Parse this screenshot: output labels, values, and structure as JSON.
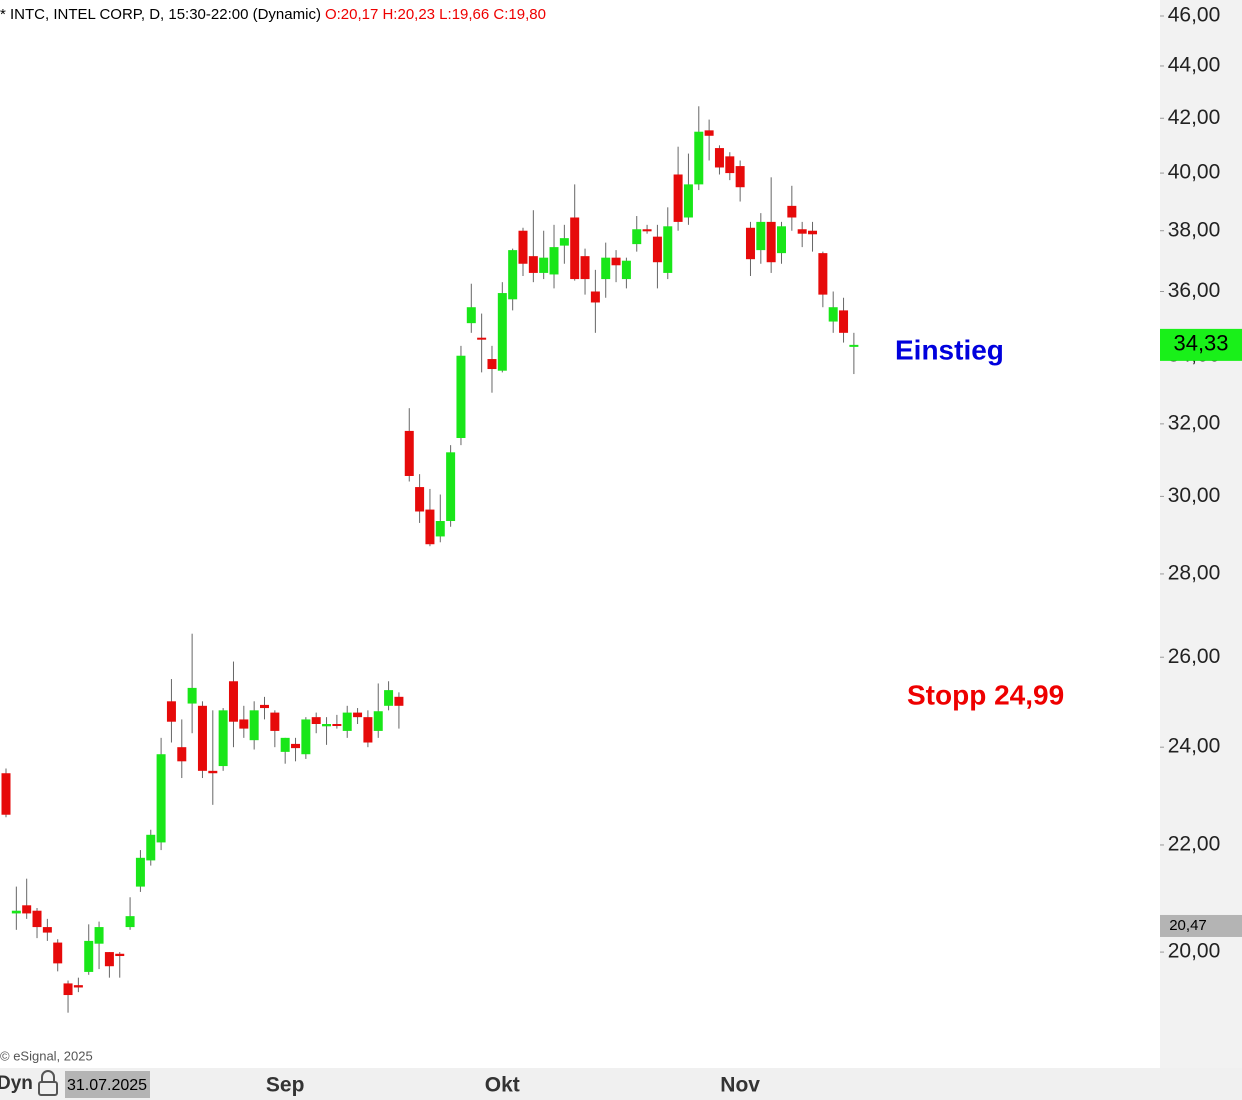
{
  "chart_data": {
    "type": "candlestick",
    "title": "* INTC, INTEL CORP, D, 15:30-22:00 (Dynamic)",
    "subtitle": "O:20,17 H:20,23 L:19,66 C:19,80",
    "categories": [
      null,
      null,
      null,
      null,
      null,
      null,
      null,
      null,
      null,
      null,
      null,
      null,
      null,
      null,
      null,
      null,
      null,
      null,
      null,
      null,
      null,
      null,
      null,
      null,
      null,
      null,
      null,
      "Sep",
      null,
      null,
      null,
      null,
      null,
      null,
      null,
      null,
      null,
      null,
      null,
      null,
      null,
      null,
      null,
      null,
      null,
      null,
      null,
      null,
      "Okt",
      null,
      null,
      null,
      null,
      null,
      null,
      null,
      null,
      null,
      null,
      null,
      null,
      null,
      null,
      null,
      null,
      null,
      null,
      null,
      null,
      null,
      null,
      "Nov",
      null,
      null,
      null,
      null,
      null,
      null,
      null,
      null,
      null,
      null,
      null
    ],
    "open": [
      23.45,
      20.7,
      20.85,
      20.75,
      20.45,
      20.17,
      19.45,
      19.42,
      19.65,
      20.15,
      20.0,
      19.97,
      20.45,
      21.2,
      21.7,
      22.05,
      25.0,
      24.0,
      24.95,
      24.9,
      23.5,
      23.6,
      25.45,
      24.6,
      24.15,
      24.92,
      24.75,
      23.9,
      24.07,
      23.85,
      24.65,
      24.45,
      24.5,
      24.35,
      24.75,
      24.65,
      24.35,
      24.9,
      25.1,
      31.8,
      30.25,
      29.65,
      28.95,
      29.35,
      31.6,
      35.0,
      34.55,
      33.9,
      33.55,
      35.75,
      38.0,
      37.15,
      36.6,
      36.55,
      37.5,
      38.45,
      37.15,
      36.0,
      36.4,
      37.1,
      36.4,
      37.55,
      38.05,
      37.8,
      36.6,
      39.95,
      38.45,
      39.6,
      41.55,
      40.9,
      40.6,
      40.25,
      38.1,
      37.35,
      38.3,
      37.25,
      38.85,
      38.05,
      38.0,
      37.25,
      35.05,
      35.4,
      34.3
    ],
    "high": [
      23.55,
      21.2,
      21.35,
      20.8,
      20.6,
      20.23,
      19.5,
      19.55,
      20.5,
      20.55,
      20.0,
      20.0,
      21.0,
      21.9,
      22.3,
      24.2,
      25.5,
      24.6,
      26.55,
      25.0,
      24.8,
      24.85,
      25.9,
      24.9,
      25.0,
      25.1,
      24.8,
      24.2,
      24.2,
      24.65,
      24.75,
      24.65,
      24.7,
      24.9,
      24.85,
      24.8,
      25.4,
      25.45,
      25.2,
      32.45,
      30.6,
      30.2,
      30.05,
      31.4,
      34.3,
      36.25,
      35.3,
      34.3,
      36.3,
      37.4,
      38.1,
      38.7,
      38.0,
      38.2,
      38.2,
      39.6,
      37.4,
      36.7,
      37.6,
      37.35,
      37.1,
      38.5,
      38.2,
      38.2,
      38.8,
      40.95,
      40.7,
      42.45,
      41.95,
      41.0,
      40.75,
      40.45,
      38.3,
      38.6,
      39.85,
      38.3,
      39.55,
      38.3,
      38.3,
      37.3,
      36.0,
      35.8,
      34.7
    ],
    "low": [
      22.55,
      20.4,
      20.6,
      20.25,
      20.2,
      19.66,
      18.95,
      19.3,
      19.6,
      19.7,
      19.55,
      19.55,
      20.4,
      21.1,
      21.6,
      21.9,
      24.1,
      23.35,
      24.3,
      23.35,
      22.8,
      23.5,
      24.0,
      24.2,
      23.95,
      24.6,
      24.0,
      23.65,
      23.7,
      23.75,
      24.3,
      24.05,
      24.4,
      24.2,
      24.5,
      24.0,
      24.2,
      24.8,
      24.4,
      30.4,
      29.3,
      28.7,
      28.8,
      29.2,
      31.4,
      34.7,
      33.5,
      32.9,
      33.5,
      35.4,
      36.5,
      36.3,
      36.4,
      36.1,
      36.9,
      36.35,
      35.9,
      34.7,
      35.8,
      36.3,
      36.1,
      37.3,
      37.9,
      36.1,
      36.4,
      38.0,
      38.2,
      39.4,
      40.45,
      39.95,
      39.75,
      39.0,
      36.5,
      36.9,
      36.6,
      36.9,
      38.0,
      37.45,
      37.3,
      35.5,
      34.7,
      34.4,
      33.45
    ],
    "close": [
      22.6,
      20.75,
      20.7,
      20.45,
      20.35,
      19.8,
      19.25,
      19.38,
      20.2,
      20.45,
      19.75,
      19.93,
      20.65,
      21.75,
      22.2,
      23.85,
      24.55,
      23.7,
      25.3,
      23.5,
      23.45,
      24.8,
      24.55,
      24.4,
      24.8,
      24.85,
      24.35,
      24.2,
      23.98,
      24.6,
      24.5,
      24.5,
      24.48,
      24.75,
      24.65,
      24.1,
      24.78,
      25.25,
      24.9,
      30.55,
      29.6,
      28.75,
      29.35,
      31.2,
      34.0,
      35.5,
      34.5,
      33.6,
      35.95,
      37.35,
      36.9,
      36.6,
      37.1,
      37.45,
      37.75,
      36.4,
      36.4,
      35.65,
      37.1,
      36.85,
      37.0,
      38.05,
      37.98,
      36.95,
      38.15,
      38.3,
      39.6,
      41.5,
      41.35,
      40.2,
      40.0,
      39.5,
      37.05,
      38.3,
      36.95,
      38.15,
      38.45,
      37.9,
      37.88,
      35.9,
      35.5,
      34.7,
      34.33
    ],
    "up_color": "#19e619",
    "down_color": "#e60a0a",
    "log_scale": true,
    "grid": false,
    "ylim": [
      18.04,
      46.66
    ],
    "yticks": [
      {
        "value": 20,
        "label": "20,00"
      },
      {
        "value": 22,
        "label": "22,00"
      },
      {
        "value": 24,
        "label": "24,00"
      },
      {
        "value": 26,
        "label": "26,00"
      },
      {
        "value": 28,
        "label": "28,00"
      },
      {
        "value": 30,
        "label": "30,00"
      },
      {
        "value": 32,
        "label": "32,00"
      },
      {
        "value": 34,
        "label": "34,00"
      },
      {
        "value": 36,
        "label": "36,00"
      },
      {
        "value": 38,
        "label": "38,00"
      },
      {
        "value": 40,
        "label": "40,00"
      },
      {
        "value": 42,
        "label": "42,00"
      },
      {
        "value": 44,
        "label": "44,00"
      },
      {
        "value": 46,
        "label": "46,00"
      }
    ],
    "price_labels": [
      {
        "value": 20.47,
        "label": "20,47",
        "color": "#b4b4b4"
      },
      {
        "value": 34.33,
        "label": "34,33",
        "color": "#19f019"
      }
    ],
    "annotations": [
      {
        "text": "Einstieg",
        "color": "#0000dd"
      },
      {
        "text": "Stopp 24,99",
        "color": "#ee0000"
      }
    ],
    "copyright": "© eSignal, 2025",
    "footer_mode": "Dyn",
    "cursor_date": "31.07.2025"
  }
}
